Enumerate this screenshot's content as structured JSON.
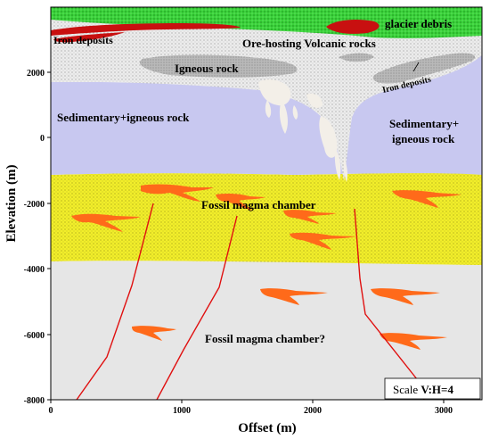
{
  "figure": {
    "xlabel": "Offset  (m)",
    "ylabel": "Elevation (m)",
    "x_ticks": [
      "0",
      "1000",
      "2000",
      "3000"
    ],
    "y_ticks": [
      "2000",
      "0",
      "-2000",
      "-4000",
      "-6000",
      "-8000"
    ],
    "scale_prefix": "Scale ",
    "scale_ratio": "V:H=4"
  },
  "units": {
    "glacier": "glacier debris",
    "iron_top": "Iron deposits",
    "ore": "Ore-hosting Volcanic rocks",
    "igneous": "Igneous rock",
    "iron_right": "Iron deposits",
    "sed_left": "Sedimentary+igneous rock",
    "sed_right_1": "Sedimentary+",
    "sed_right_2": "igneous rock",
    "chamber": "Fossil magma chamber",
    "chamber_q": "Fossil magma chamber?"
  },
  "colors": {
    "glacier": "#33cc33",
    "volcanic": "#e8e8e8",
    "sedimentary": "#c8c8f0",
    "chamber": "#f0ec30",
    "lower": "#e6e6e6",
    "fault": "#e01010",
    "magma": "#ff6a1a",
    "iron": "#c81010"
  }
}
